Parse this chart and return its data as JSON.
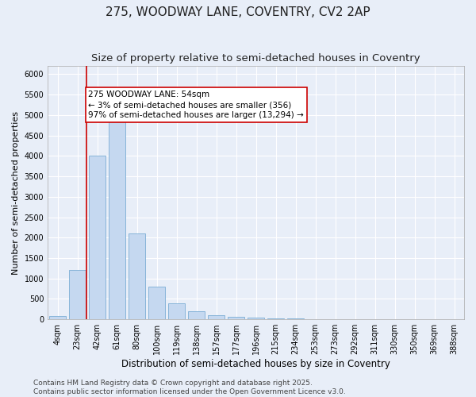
{
  "title": "275, WOODWAY LANE, COVENTRY, CV2 2AP",
  "subtitle": "Size of property relative to semi-detached houses in Coventry",
  "xlabel": "Distribution of semi-detached houses by size in Coventry",
  "ylabel": "Number of semi-detached properties",
  "bar_color": "#c5d8f0",
  "bar_edge_color": "#7aadd4",
  "background_color": "#e8eef8",
  "categories": [
    "4sqm",
    "23sqm",
    "42sqm",
    "61sqm",
    "80sqm",
    "100sqm",
    "119sqm",
    "138sqm",
    "157sqm",
    "177sqm",
    "196sqm",
    "215sqm",
    "234sqm",
    "253sqm",
    "273sqm",
    "292sqm",
    "311sqm",
    "330sqm",
    "350sqm",
    "369sqm",
    "388sqm"
  ],
  "values": [
    80,
    1200,
    4000,
    4850,
    2100,
    800,
    390,
    200,
    110,
    60,
    50,
    30,
    15,
    10,
    5,
    3,
    2,
    1,
    1,
    0,
    0
  ],
  "ylim": [
    0,
    6200
  ],
  "yticks": [
    0,
    500,
    1000,
    1500,
    2000,
    2500,
    3000,
    3500,
    4000,
    4500,
    5000,
    5500,
    6000
  ],
  "vline_color": "#cc0000",
  "vline_x": 1.45,
  "annotation_text": "275 WOODWAY LANE: 54sqm\n← 3% of semi-detached houses are smaller (356)\n97% of semi-detached houses are larger (13,294) →",
  "annotation_box_color": "#ffffff",
  "annotation_edge_color": "#cc0000",
  "footnote": "Contains HM Land Registry data © Crown copyright and database right 2025.\nContains public sector information licensed under the Open Government Licence v3.0.",
  "title_fontsize": 11,
  "subtitle_fontsize": 9.5,
  "xlabel_fontsize": 8.5,
  "ylabel_fontsize": 8,
  "tick_fontsize": 7,
  "annotation_fontsize": 7.5,
  "footnote_fontsize": 6.5,
  "grid_color": "#ffffff",
  "spine_color": "#aaaaaa"
}
